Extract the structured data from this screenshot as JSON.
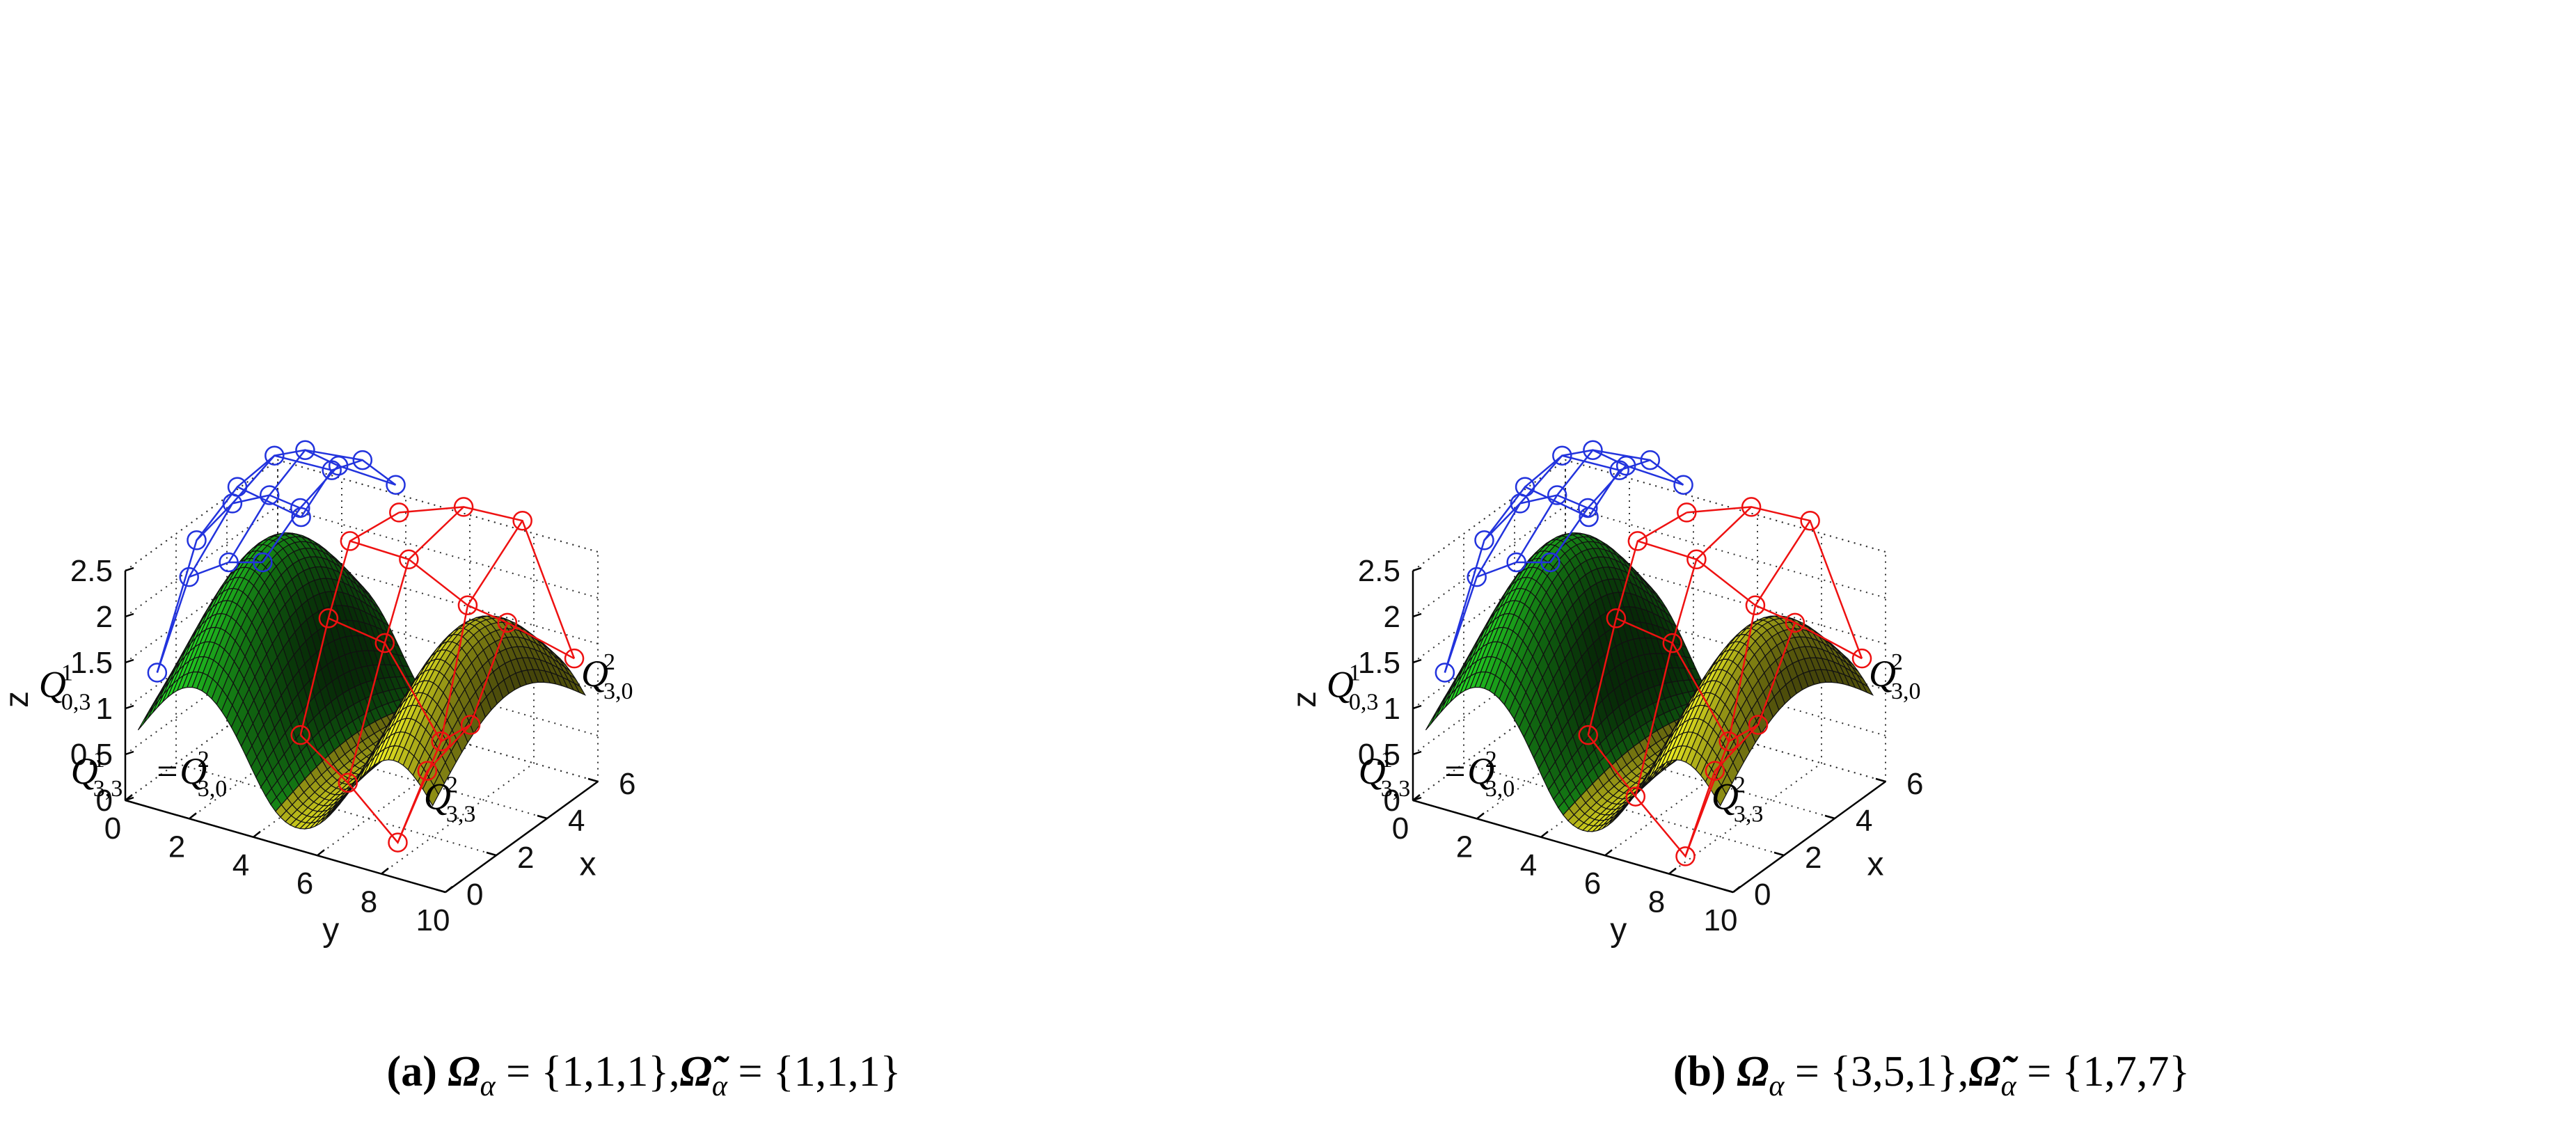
{
  "chart_data": [
    {
      "type": "surface3d",
      "panel_label": "(a)",
      "caption": {
        "label": "(a)",
        "omega_text": "Ω",
        "omega_sub": "α",
        "omega_value": " = {1,1,1},",
        "tilde_text": "Ω̃",
        "tilde_sub": "α",
        "tilde_value": " = {1,1,1}"
      },
      "xlabel": "x",
      "ylabel": "y",
      "zlabel": "z",
      "xlim": [
        0,
        6
      ],
      "ylim": [
        0,
        10
      ],
      "zlim": [
        0,
        2.5
      ],
      "xticks": [
        "0",
        "2",
        "4",
        "6"
      ],
      "yticks": [
        "0",
        "2",
        "4",
        "6",
        "8",
        "10"
      ],
      "zticks": [
        "0",
        "0.5",
        "1",
        "1.5",
        "2",
        "2.5"
      ],
      "grid": true,
      "series": [
        {
          "name": "patch 1 control net",
          "color": "#2233dd"
        },
        {
          "name": "patch 2 control net",
          "color": "#ee1111"
        },
        {
          "name": "patch 1 surface",
          "color": "#22cc22"
        },
        {
          "name": "patch 2 surface",
          "color": "#eeee22"
        }
      ],
      "point_labels": [
        {
          "base": "Q",
          "sup": "1",
          "sub": "0,3"
        },
        {
          "base": "Q",
          "sup": "1",
          "sub": "3,3"
        },
        {
          "base": "=Q",
          "sup": "2",
          "sub": "3,0"
        },
        {
          "base": "Q",
          "sup": "2",
          "sub": "3,0"
        },
        {
          "base": "Q",
          "sup": "2",
          "sub": "3,3"
        }
      ]
    },
    {
      "type": "surface3d",
      "panel_label": "(b)",
      "caption": {
        "label": "(b)",
        "omega_text": "Ω",
        "omega_sub": "α",
        "omega_value": " = {3,5,1},",
        "tilde_text": "Ω̃",
        "tilde_sub": "α",
        "tilde_value": " = {1,7,7}"
      },
      "xlabel": "x",
      "ylabel": "y",
      "zlabel": "z",
      "xlim": [
        0,
        6
      ],
      "ylim": [
        0,
        10
      ],
      "zlim": [
        0,
        2.5
      ],
      "xticks": [
        "0",
        "2",
        "4",
        "6"
      ],
      "yticks": [
        "0",
        "2",
        "4",
        "6",
        "8",
        "10"
      ],
      "zticks": [
        "0",
        "0.5",
        "1",
        "1.5",
        "2",
        "2.5"
      ],
      "grid": true,
      "series": [
        {
          "name": "patch 1 control net",
          "color": "#2233dd"
        },
        {
          "name": "patch 2 control net",
          "color": "#ee1111"
        },
        {
          "name": "patch 1 surface",
          "color": "#22cc22"
        },
        {
          "name": "patch 2 surface",
          "color": "#eeee22"
        }
      ],
      "point_labels": [
        {
          "base": "Q",
          "sup": "1",
          "sub": "0,3"
        },
        {
          "base": "Q",
          "sup": "1",
          "sub": "3,3"
        },
        {
          "base": "=Q",
          "sup": "2",
          "sub": "3,0"
        },
        {
          "base": "Q",
          "sup": "2",
          "sub": "3,0"
        },
        {
          "base": "Q",
          "sup": "2",
          "sub": "3,3"
        }
      ]
    }
  ]
}
